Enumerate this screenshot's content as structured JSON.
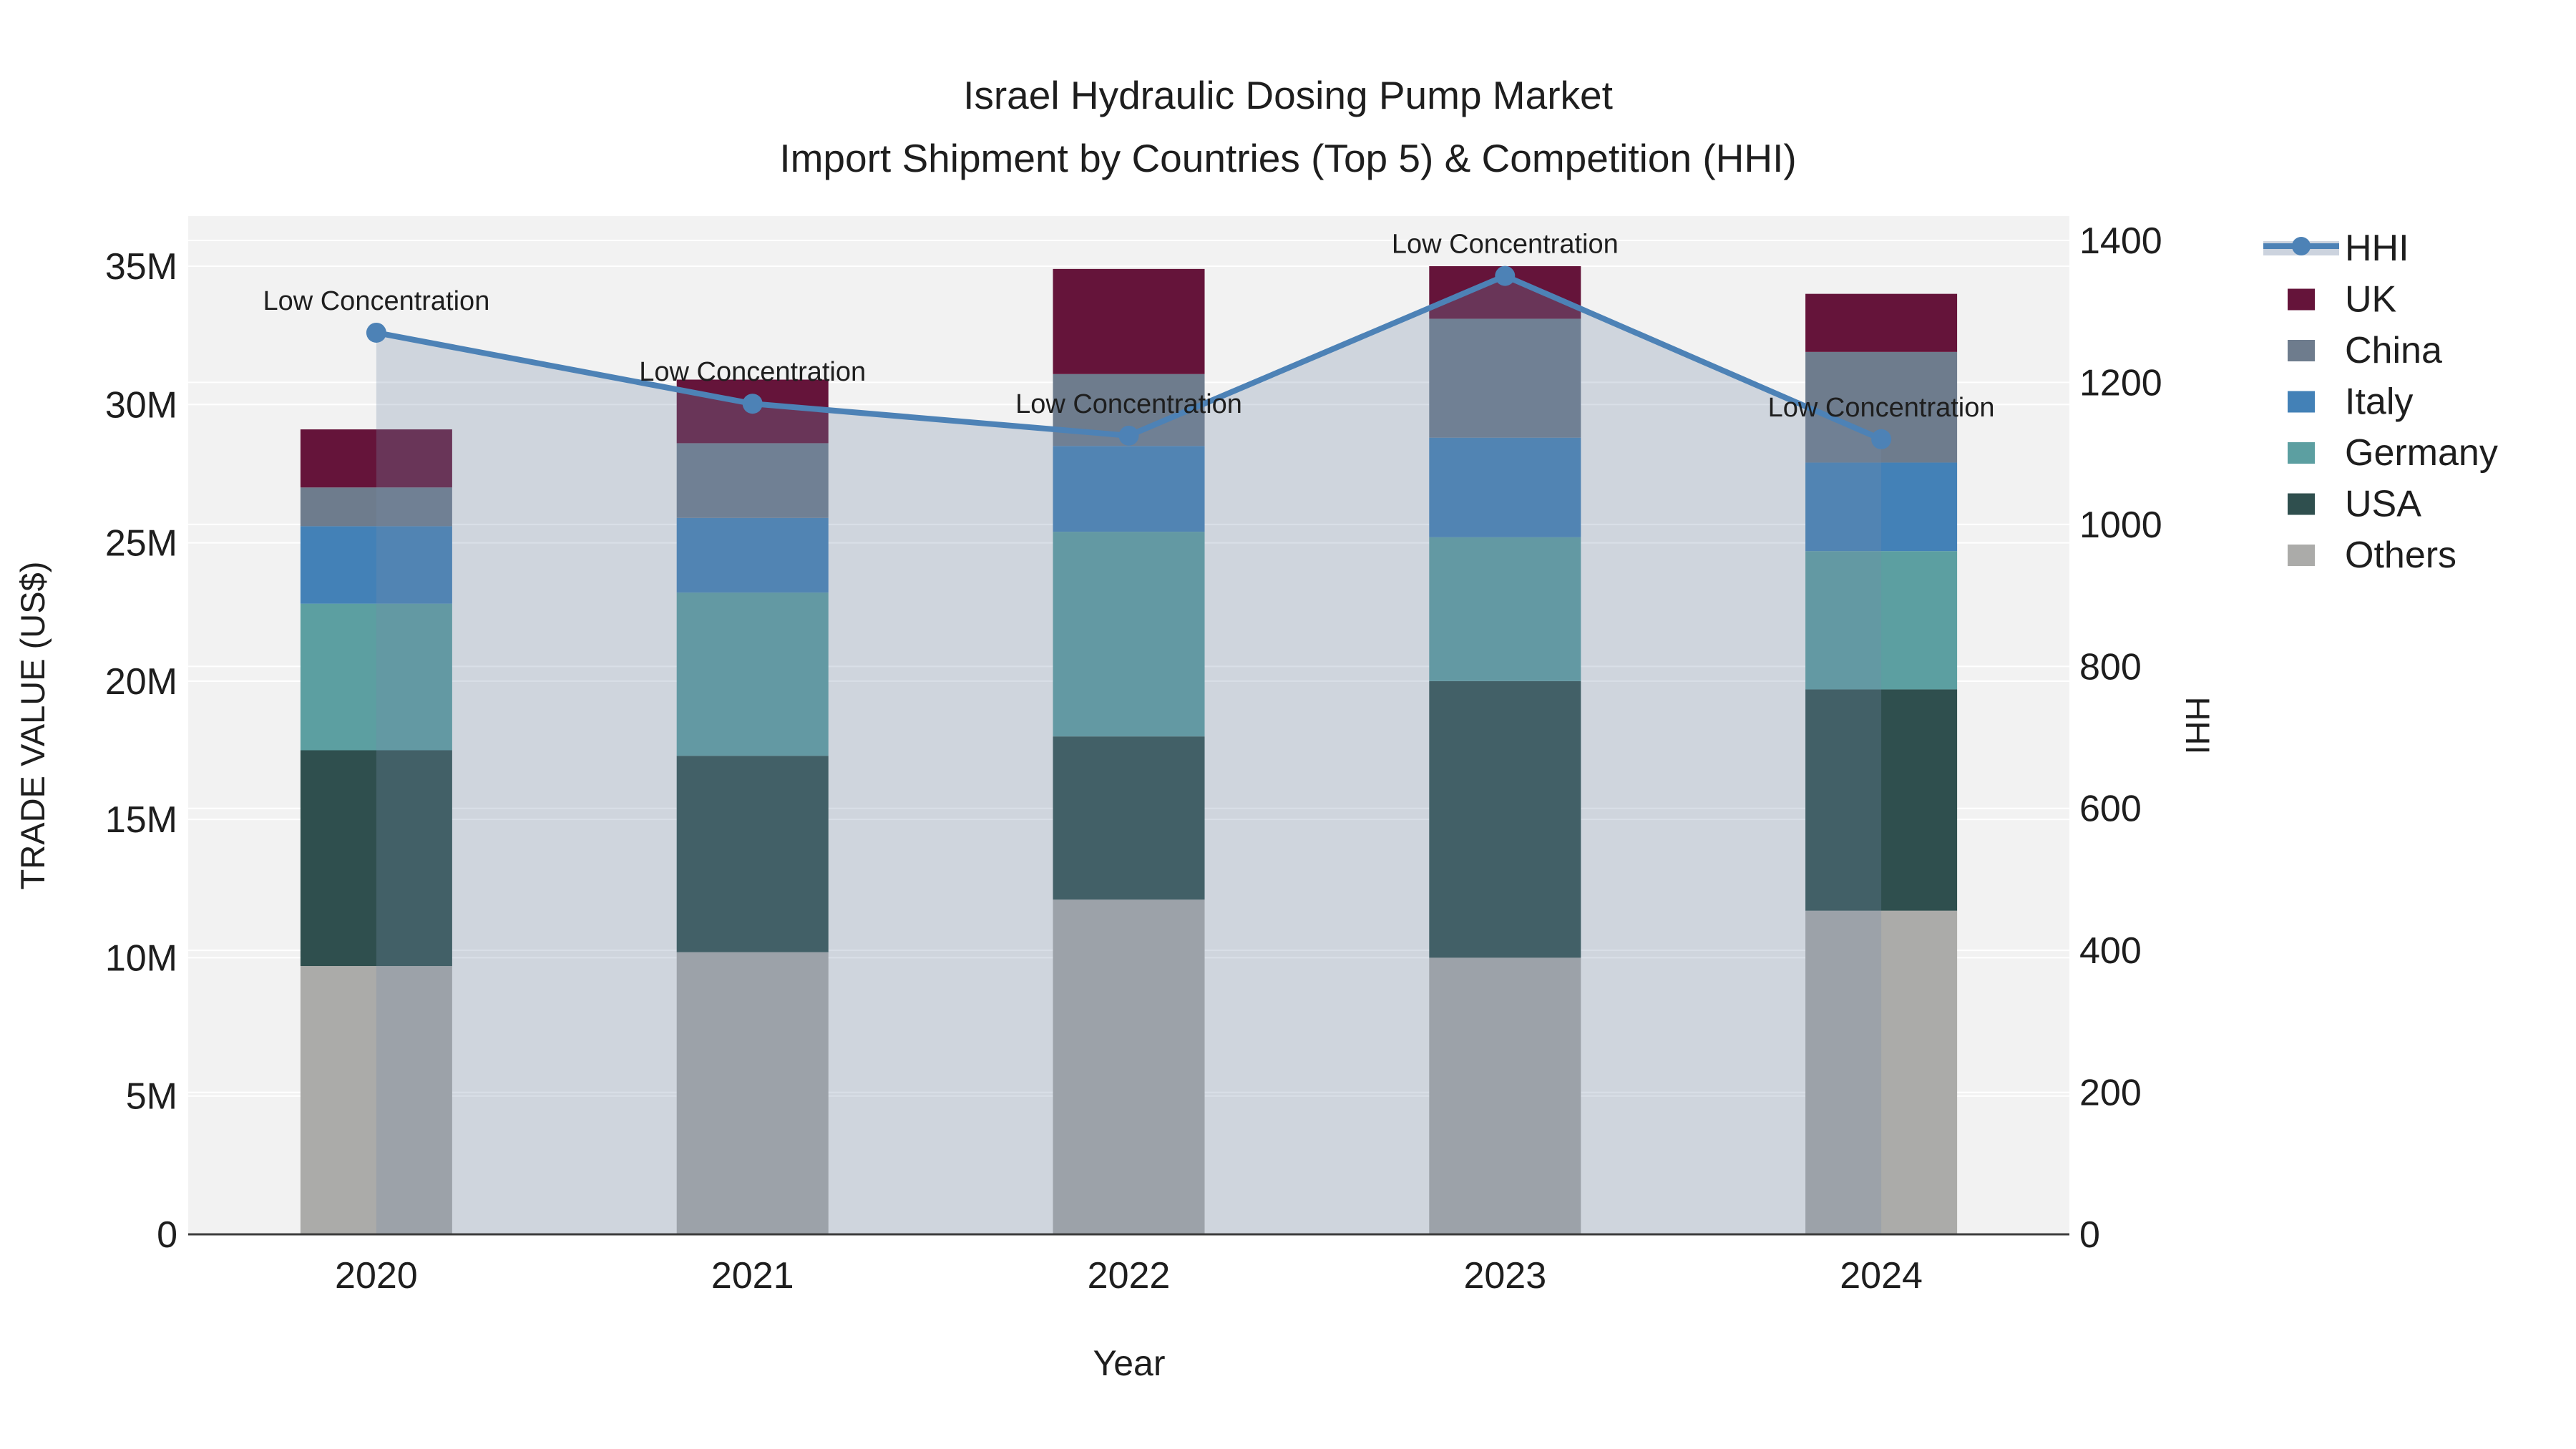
{
  "title": {
    "line1": "Israel Hydraulic Dosing Pump Market",
    "line2": "Import Shipment by Countries (Top 5) & Competition (HHI)"
  },
  "axes": {
    "left_title": "TRADE VALUE (US$)",
    "right_title": "HHI",
    "x_title": "Year",
    "left_tick_labels": [
      "0",
      "5M",
      "10M",
      "15M",
      "20M",
      "25M",
      "30M",
      "35M"
    ],
    "left_tick_values": [
      0,
      5,
      10,
      15,
      20,
      25,
      30,
      35
    ],
    "right_tick_labels": [
      "0",
      "200",
      "400",
      "600",
      "800",
      "1000",
      "1200",
      "1400"
    ],
    "right_tick_values": [
      0,
      200,
      400,
      600,
      800,
      1000,
      1200,
      1400
    ]
  },
  "annotation_label": "Low Concentration",
  "colors": {
    "plot_bg": "#f2f2f2",
    "gridline": "#ffffff",
    "axis_line": "#3c3c3c",
    "hhi_line": "#4d82b6",
    "hhi_fill": "rgba(120,140,170,0.28)",
    "hhi_legend_band": "#ccd3de",
    "uk": "#65143a",
    "china": "#6e7c8d",
    "italy": "#4381b7",
    "germany": "#5c9fa1",
    "usa": "#2f4f4e",
    "others": "#ababa9"
  },
  "legend": {
    "items": [
      {
        "label": "HHI",
        "type": "line",
        "color_key": "hhi_line"
      },
      {
        "label": "UK",
        "type": "swatch",
        "color_key": "uk"
      },
      {
        "label": "China",
        "type": "swatch",
        "color_key": "china"
      },
      {
        "label": "Italy",
        "type": "swatch",
        "color_key": "italy"
      },
      {
        "label": "Germany",
        "type": "swatch",
        "color_key": "germany"
      },
      {
        "label": "USA",
        "type": "swatch",
        "color_key": "usa"
      },
      {
        "label": "Others",
        "type": "swatch",
        "color_key": "others"
      }
    ]
  },
  "chart_data": {
    "type": "combo-stacked-bar-line",
    "categories": [
      "2020",
      "2021",
      "2022",
      "2023",
      "2024"
    ],
    "bar_unit": "million US$",
    "stack_order_bottom_to_top": [
      "Others",
      "USA",
      "Germany",
      "Italy",
      "China",
      "UK"
    ],
    "series": [
      {
        "name": "Others",
        "color_key": "others",
        "values": [
          9.7,
          10.2,
          12.1,
          10.0,
          11.7
        ]
      },
      {
        "name": "USA",
        "color_key": "usa",
        "values": [
          7.8,
          7.1,
          5.9,
          10.0,
          8.0
        ]
      },
      {
        "name": "Germany",
        "color_key": "germany",
        "values": [
          5.3,
          5.9,
          7.4,
          5.2,
          5.0
        ]
      },
      {
        "name": "Italy",
        "color_key": "italy",
        "values": [
          2.8,
          2.7,
          3.1,
          3.6,
          3.2
        ]
      },
      {
        "name": "China",
        "color_key": "china",
        "values": [
          1.4,
          2.7,
          2.6,
          4.3,
          4.0
        ]
      },
      {
        "name": "UK",
        "color_key": "uk",
        "values": [
          2.1,
          2.3,
          3.8,
          1.9,
          2.1
        ]
      }
    ],
    "bar_totals": [
      29.1,
      30.9,
      34.9,
      35.0,
      34.0
    ],
    "line_series": {
      "name": "HHI",
      "values": [
        1270,
        1170,
        1125,
        1350,
        1120
      ],
      "area_fill": true,
      "point_annotations": [
        "Low Concentration",
        "Low Concentration",
        "Low Concentration",
        "Low Concentration",
        "Low Concentration"
      ]
    },
    "left_axis": {
      "label": "TRADE VALUE (US$)",
      "range_shown": [
        0,
        35
      ],
      "unit": "M"
    },
    "right_axis": {
      "label": "HHI",
      "range_shown": [
        0,
        1400
      ]
    },
    "grid": true,
    "legend_position": "right"
  }
}
